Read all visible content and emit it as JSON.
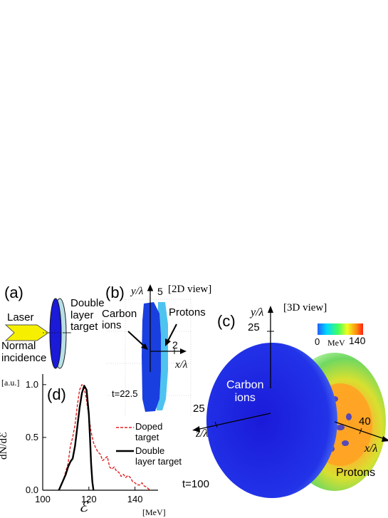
{
  "panel_a": {
    "label": "(a)",
    "laser": "Laser",
    "normal_incidence": "Normal\nincidence",
    "target": "Double\nlayer\ntarget"
  },
  "panel_b": {
    "label": "(b)",
    "y_axis": "y/λ",
    "y_tick": "5",
    "x_axis": "x/λ",
    "x_tick": "2",
    "view": "[2D view]",
    "carbon": "Carbon\nions",
    "protons": "Protons",
    "time": "t=22.5",
    "colors": {
      "carbon": "#1a3fe0",
      "protons": "#4fc3f0"
    }
  },
  "panel_c": {
    "label": "(c)",
    "view": "[3D view]",
    "y_axis": "y/λ",
    "y_tick": "25",
    "z_axis": "z/λ",
    "z_tick": "25",
    "x_axis": "x/λ",
    "x_tick": "40",
    "carbon": "Carbon\nions",
    "protons": "Protons",
    "time": "t=100",
    "colorbar": {
      "min": "0",
      "max": "140",
      "unit": "MeV"
    }
  },
  "panel_d": {
    "label": "(d)",
    "legend_doped": "Doped\ntarget",
    "legend_double": "Double\nlayer target",
    "x_unit": "[MeV]",
    "y_unit": "[a.u.]",
    "x_label": "ℰ",
    "y_label": "dN/dℰ"
  },
  "chart_data": {
    "type": "line",
    "xlabel": "ℰ",
    "ylabel": "dN/dℰ",
    "xlim": [
      100,
      150
    ],
    "ylim": [
      0,
      1.1
    ],
    "x_ticks": [
      100,
      120,
      140
    ],
    "y_ticks": [
      "0.0",
      "0.5",
      "1.0"
    ],
    "series": [
      {
        "name": "Doped target",
        "style": "dashed",
        "color": "#e02020",
        "x": [
          107,
          109,
          110,
          111,
          112,
          113,
          114,
          115,
          116,
          117,
          118,
          119,
          120,
          121,
          122,
          123,
          124,
          125,
          126,
          127,
          128,
          129,
          130,
          131,
          132,
          133,
          134,
          135,
          136,
          137,
          138,
          139,
          140,
          141,
          142,
          143,
          144,
          145,
          146,
          147
        ],
        "y": [
          0.0,
          0.1,
          0.18,
          0.25,
          0.42,
          0.5,
          0.62,
          0.8,
          0.95,
          1.0,
          0.97,
          0.85,
          0.7,
          0.55,
          0.45,
          0.4,
          0.36,
          0.34,
          0.28,
          0.3,
          0.32,
          0.22,
          0.2,
          0.22,
          0.18,
          0.17,
          0.13,
          0.15,
          0.12,
          0.14,
          0.12,
          0.08,
          0.07,
          0.05,
          0.05,
          0.07,
          0.04,
          0.03,
          0.01,
          0.0
        ]
      },
      {
        "name": "Double layer target",
        "style": "solid",
        "color": "#000000",
        "x": [
          107,
          109,
          110,
          111,
          112,
          113,
          114,
          115,
          116,
          117,
          118,
          119,
          120,
          120.5,
          121,
          121.5,
          122
        ],
        "y": [
          0.0,
          0.1,
          0.15,
          0.22,
          0.27,
          0.3,
          0.42,
          0.6,
          0.78,
          0.92,
          0.99,
          0.95,
          0.72,
          0.5,
          0.25,
          0.08,
          0.0
        ]
      }
    ]
  }
}
